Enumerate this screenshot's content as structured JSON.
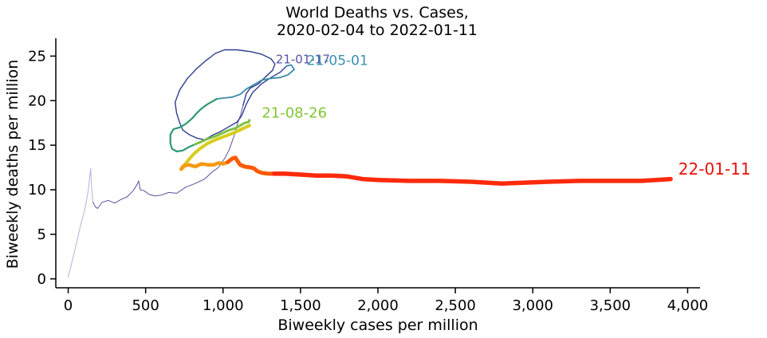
{
  "chart_data": {
    "type": "line",
    "title": "World Deaths vs. Cases,",
    "subtitle": "2020-02-04 to 2022-01-11",
    "xlabel": "Biweekly cases per million",
    "ylabel": "Biweekly deaths per million",
    "xlim": [
      -80,
      4080
    ],
    "ylim": [
      -1,
      27
    ],
    "xticks": [
      0,
      500,
      1000,
      1500,
      2000,
      2500,
      3000,
      3500,
      4000
    ],
    "xtick_labels": [
      "0",
      "500",
      "1,000",
      "1,500",
      "2,000",
      "2,500",
      "3,000",
      "3,500",
      "4,000"
    ],
    "yticks": [
      0,
      5,
      10,
      15,
      20,
      25
    ],
    "ytick_labels": [
      "0",
      "5",
      "10",
      "15",
      "20",
      "25"
    ],
    "grid": false,
    "legend": "none",
    "series": [
      {
        "color": "#bcaed8",
        "width": 1,
        "points": [
          [
            0,
            0.2
          ],
          [
            40,
            3
          ],
          [
            80,
            6
          ],
          [
            110,
            8
          ],
          [
            130,
            10
          ],
          [
            145,
            12.4
          ],
          [
            150,
            10.5
          ],
          [
            160,
            8.6
          ]
        ]
      },
      {
        "color": "#5b4fa0",
        "width": 1,
        "points": [
          [
            160,
            8.6
          ],
          [
            175,
            8.1
          ],
          [
            190,
            7.9
          ],
          [
            220,
            8.6
          ],
          [
            260,
            8.8
          ],
          [
            300,
            8.5
          ],
          [
            340,
            8.9
          ],
          [
            380,
            9.2
          ],
          [
            420,
            9.9
          ],
          [
            445,
            10.6
          ],
          [
            455,
            11.0
          ],
          [
            465,
            10.0
          ],
          [
            490,
            9.9
          ],
          [
            520,
            9.5
          ],
          [
            560,
            9.3
          ],
          [
            600,
            9.4
          ],
          [
            650,
            9.7
          ],
          [
            700,
            9.6
          ],
          [
            760,
            10.3
          ],
          [
            820,
            10.7
          ],
          [
            880,
            11.2
          ],
          [
            930,
            12.0
          ],
          [
            970,
            12.5
          ],
          [
            1010,
            13.5
          ],
          [
            1040,
            14.5
          ],
          [
            1070,
            16
          ],
          [
            1095,
            17.5
          ],
          [
            1115,
            18.5
          ],
          [
            1130,
            19.5
          ]
        ]
      },
      {
        "color": "#2e3f8f",
        "width": 1.4,
        "points": [
          [
            1130,
            19.5
          ],
          [
            1150,
            20.8
          ],
          [
            1175,
            21.4
          ],
          [
            1230,
            21.9
          ],
          [
            1270,
            22.6
          ],
          [
            1320,
            23.4
          ],
          [
            1335,
            24.1
          ],
          [
            1310,
            24.7
          ],
          [
            1250,
            25.2
          ],
          [
            1180,
            25.5
          ],
          [
            1090,
            25.7
          ],
          [
            1010,
            25.7
          ],
          [
            950,
            25.3
          ],
          [
            890,
            24.5
          ],
          [
            830,
            23.6
          ],
          [
            770,
            22.5
          ],
          [
            720,
            21.2
          ],
          [
            690,
            19.8
          ],
          [
            700,
            18.6
          ],
          [
            720,
            17.5
          ],
          [
            740,
            16.7
          ],
          [
            780,
            16.2
          ],
          [
            830,
            15.8
          ],
          [
            880,
            15.6
          ],
          [
            930,
            16.1
          ],
          [
            980,
            16.5
          ],
          [
            1030,
            17.0
          ],
          [
            1090,
            17.6
          ],
          [
            1120,
            18.3
          ],
          [
            1150,
            19.6
          ],
          [
            1190,
            20.9
          ],
          [
            1250,
            21.9
          ],
          [
            1310,
            22.6
          ],
          [
            1370,
            23.2
          ],
          [
            1410,
            23.9
          ]
        ]
      },
      {
        "color": "#3a8aa6",
        "width": 1.8,
        "points": [
          [
            1410,
            23.9
          ],
          [
            1440,
            24.0
          ],
          [
            1460,
            23.5
          ],
          [
            1420,
            22.9
          ],
          [
            1370,
            22.6
          ],
          [
            1310,
            22.5
          ],
          [
            1250,
            22.3
          ],
          [
            1200,
            21.8
          ],
          [
            1150,
            21.3
          ],
          [
            1110,
            20.7
          ],
          [
            1060,
            20.4
          ],
          [
            1010,
            20.3
          ],
          [
            960,
            20.2
          ]
        ]
      },
      {
        "color": "#2d9a72",
        "width": 2.2,
        "points": [
          [
            960,
            20.2
          ],
          [
            900,
            19.6
          ],
          [
            860,
            19.1
          ],
          [
            830,
            18.6
          ],
          [
            800,
            18.0
          ],
          [
            760,
            17.4
          ],
          [
            720,
            17.0
          ],
          [
            680,
            16.8
          ],
          [
            660,
            16.2
          ],
          [
            660,
            15.2
          ],
          [
            670,
            14.6
          ],
          [
            700,
            14.3
          ],
          [
            740,
            14.4
          ],
          [
            780,
            14.8
          ],
          [
            820,
            15.1
          ]
        ]
      },
      {
        "color": "#7cc142",
        "width": 3,
        "points": [
          [
            820,
            15.1
          ],
          [
            860,
            15.4
          ],
          [
            900,
            15.7
          ],
          [
            950,
            16.0
          ],
          [
            1000,
            16.4
          ],
          [
            1040,
            16.7
          ],
          [
            1080,
            16.9
          ],
          [
            1110,
            17.2
          ],
          [
            1140,
            17.5
          ],
          [
            1165,
            17.6
          ],
          [
            1170,
            17.8
          ]
        ]
      },
      {
        "color": "#d8cc1e",
        "width": 4,
        "points": [
          [
            1170,
            17.2
          ],
          [
            1120,
            16.8
          ],
          [
            1070,
            16.4
          ],
          [
            1010,
            16.0
          ],
          [
            950,
            15.6
          ],
          [
            900,
            15.2
          ],
          [
            850,
            14.6
          ],
          [
            810,
            14.0
          ],
          [
            780,
            13.4
          ],
          [
            760,
            13.0
          ],
          [
            740,
            12.6
          ]
        ]
      },
      {
        "color": "#f59a0f",
        "width": 4.5,
        "points": [
          [
            740,
            12.6
          ],
          [
            730,
            12.3
          ],
          [
            750,
            12.7
          ],
          [
            780,
            12.8
          ],
          [
            820,
            12.6
          ],
          [
            860,
            12.9
          ],
          [
            900,
            12.8
          ],
          [
            940,
            12.8
          ],
          [
            970,
            13.0
          ],
          [
            1000,
            12.9
          ],
          [
            1030,
            13.1
          ]
        ]
      },
      {
        "color": "#ff5a00",
        "width": 5,
        "points": [
          [
            1030,
            13.1
          ],
          [
            1060,
            13.5
          ],
          [
            1080,
            13.6
          ],
          [
            1090,
            13.3
          ],
          [
            1110,
            12.8
          ],
          [
            1140,
            12.6
          ],
          [
            1180,
            12.5
          ],
          [
            1200,
            12.4
          ],
          [
            1220,
            12.1
          ],
          [
            1250,
            11.9
          ],
          [
            1290,
            11.8
          ],
          [
            1330,
            11.8
          ]
        ]
      },
      {
        "color": "#fc2a0c",
        "width": 5.5,
        "points": [
          [
            1330,
            11.8
          ],
          [
            1400,
            11.8
          ],
          [
            1500,
            11.7
          ],
          [
            1600,
            11.6
          ],
          [
            1700,
            11.6
          ],
          [
            1800,
            11.5
          ],
          [
            1900,
            11.2
          ],
          [
            2000,
            11.1
          ],
          [
            2200,
            11.0
          ],
          [
            2400,
            11.0
          ],
          [
            2600,
            10.9
          ],
          [
            2800,
            10.7
          ],
          [
            2950,
            10.8
          ],
          [
            3100,
            10.9
          ],
          [
            3300,
            11.0
          ],
          [
            3500,
            11.0
          ],
          [
            3700,
            11.0
          ],
          [
            3800,
            11.1
          ],
          [
            3890,
            11.2
          ]
        ]
      }
    ],
    "annotations": [
      {
        "text": "21-01-17",
        "x": 1340,
        "y": 24.2,
        "color": "#5753a8",
        "size": 15
      },
      {
        "text": "21-05-01",
        "x": 1540,
        "y": 24.0,
        "color": "#3b8fb2",
        "size": 17
      },
      {
        "text": "21-08-26",
        "x": 1250,
        "y": 18.1,
        "color": "#82c735",
        "size": 18
      },
      {
        "text": "22-01-11",
        "x": 3940,
        "y": 11.7,
        "color": "#e8110c",
        "size": 20
      }
    ]
  }
}
